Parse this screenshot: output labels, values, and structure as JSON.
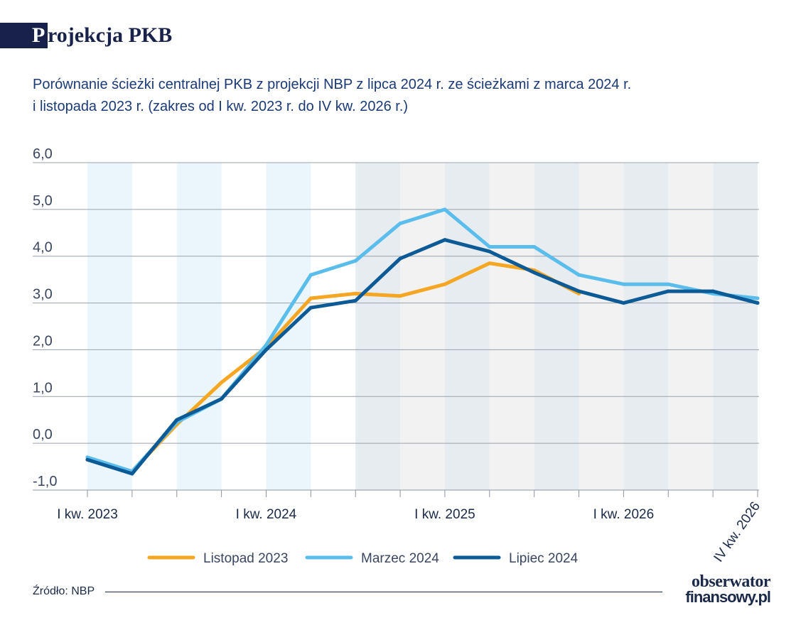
{
  "header": {
    "title_letter": "P",
    "title_rest": "rojekcja PKB",
    "subtitle_line1": "Porównanie ścieżki centralnej PKB z projekcji NBP z lipca 2024 r. ze ścieżkami z marca 2024 r.",
    "subtitle_line2": "i listopada 2023 r.  (zakres od I kw. 2023 r. do IV kw. 2026 r.)"
  },
  "chart_data": {
    "type": "line",
    "title": "",
    "xlabel": "",
    "ylabel": "",
    "x": [
      "I kw. 2023",
      "II kw. 2023",
      "III kw. 2023",
      "IV kw. 2023",
      "I kw. 2024",
      "II kw. 2024",
      "III kw. 2024",
      "IV kw. 2024",
      "I kw. 2025",
      "II kw. 2025",
      "III kw. 2025",
      "IV kw. 2025",
      "I kw. 2026",
      "II kw. 2026",
      "III kw. 2026",
      "IV kw. 2026"
    ],
    "x_tick_labels": [
      {
        "index": 0,
        "label": "I kw. 2023"
      },
      {
        "index": 4,
        "label": "I kw. 2024"
      },
      {
        "index": 8,
        "label": "I kw. 2025"
      },
      {
        "index": 12,
        "label": "I kw. 2026"
      },
      {
        "index": 15,
        "label": "IV kw. 2026"
      }
    ],
    "y_ticks": [
      "6,0",
      "5,0",
      "4,0",
      "3,0",
      "2,0",
      "1,0",
      "0,0",
      "-1,0"
    ],
    "y_tick_values": [
      6,
      5,
      4,
      3,
      2,
      1,
      0,
      -1
    ],
    "ylim": [
      -1,
      6
    ],
    "grid": true,
    "legend_position": "bottom",
    "shading": {
      "light_blue_quarters": [
        0,
        2,
        4
      ],
      "gray_blue_quarters": [
        6,
        8,
        10,
        12,
        14
      ],
      "light_gray_quarters": [
        7,
        9,
        11,
        13,
        15
      ],
      "light_blue": "#eaf5fc",
      "gray_blue": "#e6ecf0",
      "light_gray": "#f2f2f2"
    },
    "series": [
      {
        "name": "Listopad 2023",
        "color": "#f5a623",
        "values": [
          -0.35,
          -0.6,
          0.4,
          1.3,
          2.05,
          3.1,
          3.2,
          3.15,
          3.4,
          3.85,
          3.7,
          3.2,
          null,
          null,
          null,
          null
        ]
      },
      {
        "name": "Marzec 2024",
        "color": "#5bbdec",
        "values": [
          -0.3,
          -0.6,
          0.45,
          0.95,
          2.1,
          3.6,
          3.9,
          4.7,
          5.0,
          4.2,
          4.2,
          3.6,
          3.4,
          3.4,
          3.2,
          3.1
        ]
      },
      {
        "name": "Lipiec 2024",
        "color": "#0c5a96",
        "values": [
          -0.35,
          -0.65,
          0.5,
          0.95,
          2.0,
          2.9,
          3.05,
          3.95,
          4.35,
          4.1,
          3.65,
          3.25,
          3.0,
          3.25,
          3.25,
          3.0
        ]
      }
    ]
  },
  "footer": {
    "source": "Źródło: NBP",
    "logo_line1": "obserwator",
    "logo_line2": "finansowy.pl"
  }
}
